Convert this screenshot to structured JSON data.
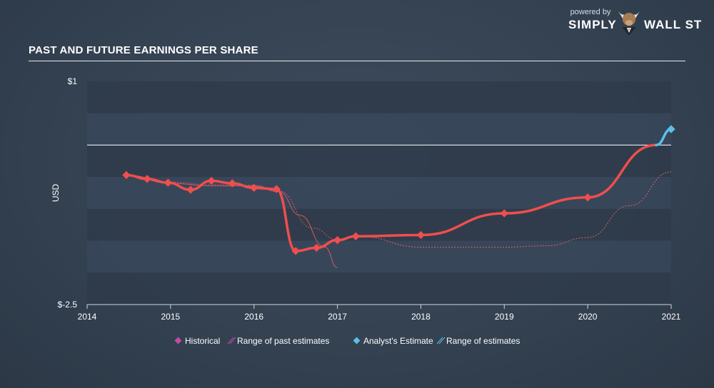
{
  "brand": {
    "powered_by": "powered by",
    "name_left": "SIMPLY",
    "name_right": "WALL ST"
  },
  "title": "PAST AND FUTURE EARNINGS PER SHARE",
  "legend": [
    {
      "label": "Historical",
      "kind": "marker",
      "color": "#c64aa6"
    },
    {
      "label": "Range of past estimates",
      "kind": "hatch",
      "color": "#c64aa6"
    },
    {
      "label": "Analyst's Estimate",
      "kind": "marker",
      "color": "#5bc0e6"
    },
    {
      "label": "Range of estimates",
      "kind": "hatch",
      "color": "#5bc0e6"
    }
  ],
  "colors": {
    "historical_line": "#f04e4e",
    "estimate_line": "#5bc0e6",
    "range_past": "#f06060",
    "range_future": "#ff6b6b",
    "band_dark": "#2f3b4a",
    "band_light": "#38465a",
    "zero_line": "#ffffff"
  },
  "chart_data": {
    "type": "line",
    "title": "PAST AND FUTURE EARNINGS PER SHARE",
    "ylabel": "USD",
    "xlabel": "",
    "ylim": [
      -2.5,
      1
    ],
    "xlim": [
      2014,
      2021.0
    ],
    "y_tick_labels": [
      "$1",
      "$-2.5"
    ],
    "x_ticks": [
      "2014",
      "2015",
      "2016",
      "2017",
      "2018",
      "2019",
      "2020",
      "2021"
    ],
    "grid": "horizontal bands",
    "legend_position": "bottom",
    "series": [
      {
        "name": "Historical",
        "x": [
          2014.47,
          2014.72,
          2014.97,
          2015.24,
          2015.49,
          2015.74,
          2016.0,
          2016.27,
          2016.5,
          2016.75,
          2017.0,
          2017.22,
          2018.0,
          2019.0,
          2020.0,
          2020.82
        ],
        "y": [
          -0.47,
          -0.53,
          -0.59,
          -0.7,
          -0.56,
          -0.6,
          -0.67,
          -0.69,
          -1.66,
          -1.61,
          -1.49,
          -1.43,
          -1.41,
          -1.07,
          -0.82,
          0.0
        ]
      },
      {
        "name": "Analyst's Estimate",
        "x": [
          2020.82,
          2021.0
        ],
        "y": [
          0.0,
          0.25
        ]
      }
    ],
    "ranges": [
      {
        "name": "Range of past estimates",
        "upper_x": [
          2014.47,
          2015.0,
          2015.5,
          2016.0,
          2016.3,
          2016.7,
          2017.0,
          2017.25
        ],
        "upper_y": [
          -0.47,
          -0.58,
          -0.62,
          -0.63,
          -0.72,
          -1.3,
          -1.48,
          -1.43
        ],
        "lower_x": [
          2014.47,
          2015.0,
          2015.5,
          2016.0,
          2016.3,
          2016.55,
          2016.85,
          2017.0
        ],
        "lower_y": [
          -0.47,
          -0.6,
          -0.64,
          -0.64,
          -0.73,
          -1.1,
          -1.6,
          -1.92
        ]
      },
      {
        "name": "Range of estimates",
        "upper_x": [
          2017.25,
          2018.0,
          2019.0,
          2019.5,
          2020.0,
          2020.5,
          2021.0
        ],
        "upper_y": [
          -1.43,
          -1.6,
          -1.6,
          -1.58,
          -1.45,
          -0.95,
          -0.42
        ],
        "lower_x": [
          2021.0
        ],
        "lower_y": [
          -0.42
        ]
      }
    ]
  }
}
